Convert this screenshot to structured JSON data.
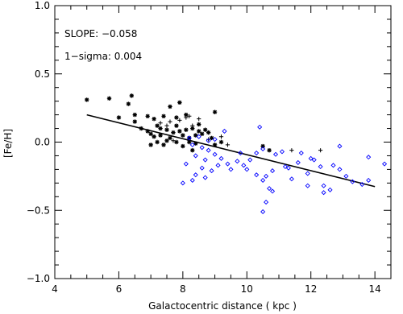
{
  "chart_data": {
    "type": "scatter",
    "title": "",
    "xlabel": "Galactocentric distance ( kpc )",
    "ylabel": "[Fe/H]",
    "xlim": [
      4,
      14.5
    ],
    "ylim": [
      -1.0,
      1.0
    ],
    "xticks": [
      4,
      6,
      8,
      10,
      12,
      14
    ],
    "xtick_labels": [
      "4",
      "6",
      "8",
      "10",
      "12",
      "14"
    ],
    "yticks": [
      -1.0,
      -0.5,
      0.0,
      0.5,
      1.0
    ],
    "ytick_labels": [
      "−1.0",
      "−0.5",
      "0.0",
      "0.5",
      "1.0"
    ],
    "annotations": [
      "SLOPE: −0.058",
      "1−sigma: 0.004"
    ],
    "series": [
      {
        "marker": "asterisk",
        "color": "#000000",
        "points": [
          [
            5.0,
            0.31
          ],
          [
            5.7,
            0.32
          ],
          [
            6.4,
            0.34
          ],
          [
            6.3,
            0.28
          ],
          [
            6.0,
            0.18
          ],
          [
            6.5,
            0.2
          ],
          [
            6.5,
            0.15
          ],
          [
            6.9,
            0.19
          ],
          [
            7.1,
            0.17
          ],
          [
            7.4,
            0.19
          ],
          [
            7.2,
            0.12
          ],
          [
            7.3,
            0.1
          ],
          [
            6.7,
            0.1
          ],
          [
            6.9,
            0.08
          ],
          [
            7.0,
            0.06
          ],
          [
            7.1,
            0.04
          ],
          [
            7.3,
            0.05
          ],
          [
            7.5,
            0.09
          ],
          [
            7.6,
            0.03
          ],
          [
            7.7,
            0.07
          ],
          [
            7.8,
            0.12
          ],
          [
            7.9,
            0.08
          ],
          [
            7.5,
            0.01
          ],
          [
            7.8,
            0.0
          ],
          [
            7.2,
            0.0
          ],
          [
            7.0,
            -0.02
          ],
          [
            7.4,
            -0.02
          ],
          [
            8.0,
            0.05
          ],
          [
            8.1,
            0.09
          ],
          [
            8.2,
            0.03
          ],
          [
            8.3,
            0.1
          ],
          [
            8.4,
            0.05
          ],
          [
            8.5,
            0.08
          ],
          [
            8.6,
            0.06
          ],
          [
            8.7,
            0.09
          ],
          [
            8.8,
            0.07
          ],
          [
            8.5,
            0.13
          ],
          [
            8.0,
            -0.03
          ],
          [
            8.2,
            0.0
          ],
          [
            8.9,
            0.03
          ],
          [
            9.0,
            -0.02
          ],
          [
            9.2,
            0.0
          ],
          [
            9.0,
            0.22
          ],
          [
            7.6,
            0.26
          ],
          [
            7.9,
            0.29
          ],
          [
            8.1,
            0.2
          ],
          [
            7.8,
            0.18
          ],
          [
            8.4,
            -0.01
          ],
          [
            8.3,
            -0.06
          ],
          [
            10.5,
            -0.03
          ],
          [
            10.7,
            -0.06
          ]
        ]
      },
      {
        "marker": "plus",
        "color": "#000000",
        "points": [
          [
            7.3,
            0.14
          ],
          [
            7.6,
            0.15
          ],
          [
            7.9,
            0.16
          ],
          [
            8.1,
            0.18
          ],
          [
            8.5,
            0.17
          ],
          [
            8.8,
            0.02
          ],
          [
            9.2,
            0.04
          ],
          [
            7.5,
            0.12
          ],
          [
            7.7,
            0.01
          ],
          [
            8.3,
            0.12
          ],
          [
            9.4,
            -0.02
          ],
          [
            11.4,
            -0.06
          ],
          [
            12.3,
            -0.06
          ],
          [
            8.2,
            0.19
          ]
        ]
      },
      {
        "marker": "diamond",
        "color": "#0000ff",
        "points": [
          [
            8.2,
            0.03
          ],
          [
            8.5,
            0.04
          ],
          [
            8.8,
            0.01
          ],
          [
            9.0,
            0.02
          ],
          [
            9.3,
            0.08
          ],
          [
            8.3,
            -0.02
          ],
          [
            8.6,
            -0.04
          ],
          [
            8.8,
            -0.06
          ],
          [
            9.0,
            -0.09
          ],
          [
            9.2,
            -0.12
          ],
          [
            8.4,
            -0.1
          ],
          [
            8.7,
            -0.13
          ],
          [
            8.6,
            -0.19
          ],
          [
            8.9,
            -0.21
          ],
          [
            9.1,
            -0.17
          ],
          [
            8.1,
            -0.16
          ],
          [
            8.4,
            -0.24
          ],
          [
            8.7,
            -0.26
          ],
          [
            9.4,
            -0.16
          ],
          [
            9.7,
            -0.14
          ],
          [
            9.9,
            -0.17
          ],
          [
            10.1,
            -0.13
          ],
          [
            9.8,
            -0.08
          ],
          [
            10.3,
            -0.08
          ],
          [
            10.5,
            -0.05
          ],
          [
            10.9,
            -0.09
          ],
          [
            11.1,
            -0.07
          ],
          [
            10.0,
            -0.2
          ],
          [
            10.3,
            -0.24
          ],
          [
            10.6,
            -0.25
          ],
          [
            10.8,
            -0.21
          ],
          [
            10.5,
            -0.28
          ],
          [
            10.7,
            -0.34
          ],
          [
            10.8,
            -0.36
          ],
          [
            10.6,
            -0.44
          ],
          [
            10.5,
            -0.51
          ],
          [
            11.3,
            -0.19
          ],
          [
            11.6,
            -0.15
          ],
          [
            11.9,
            -0.23
          ],
          [
            11.4,
            -0.27
          ],
          [
            11.9,
            -0.32
          ],
          [
            12.1,
            -0.13
          ],
          [
            12.3,
            -0.18
          ],
          [
            12.4,
            -0.32
          ],
          [
            12.7,
            -0.17
          ],
          [
            12.9,
            -0.03
          ],
          [
            12.9,
            -0.2
          ],
          [
            13.1,
            -0.25
          ],
          [
            13.3,
            -0.29
          ],
          [
            12.6,
            -0.35
          ],
          [
            12.4,
            -0.37
          ],
          [
            13.6,
            -0.31
          ],
          [
            13.8,
            -0.28
          ],
          [
            13.8,
            -0.11
          ],
          [
            14.3,
            -0.16
          ],
          [
            11.7,
            -0.08
          ],
          [
            10.4,
            0.11
          ],
          [
            8.0,
            -0.3
          ],
          [
            8.3,
            -0.28
          ],
          [
            11.2,
            -0.18
          ],
          [
            9.5,
            -0.2
          ],
          [
            12.0,
            -0.12
          ]
        ]
      }
    ],
    "fit_line": {
      "x": [
        5.0,
        14.0
      ],
      "y": [
        0.2,
        -0.326
      ],
      "color": "#000000"
    }
  }
}
